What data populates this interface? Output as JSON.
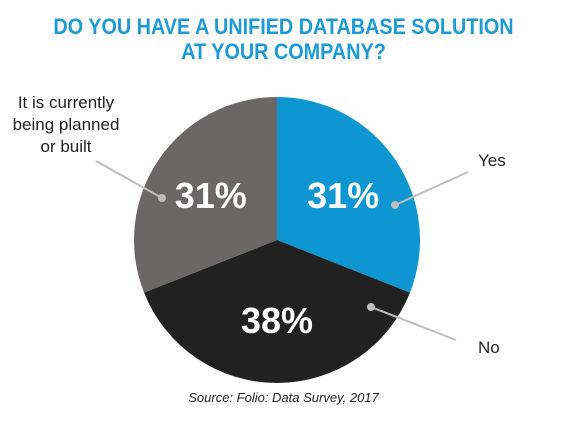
{
  "title_lines": [
    "DO YOU HAVE A UNIFIED DATABASE SOLUTION",
    "AT YOUR COMPANY?"
  ],
  "source": "Source: Folio: Data Survey, 2017",
  "chart_data": {
    "type": "pie",
    "title": "DO YOU HAVE A UNIFIED DATABASE SOLUTION AT YOUR COMPANY?",
    "slices": [
      {
        "label": "Yes",
        "value": 31,
        "value_label": "31%",
        "color": "#0d96d1"
      },
      {
        "label": "No",
        "value": 38,
        "value_label": "38%",
        "color": "#212121"
      },
      {
        "label": "It is currently being planned or built",
        "label_lines": [
          "It is currently",
          "being planned",
          "or built"
        ],
        "value": 31,
        "value_label": "31%",
        "color": "#6b6766"
      }
    ],
    "legend": "none"
  },
  "colors": {
    "title": "#1b9ad6",
    "leader_lines": "#bdbdbd",
    "slice_text": "#ffffff"
  }
}
